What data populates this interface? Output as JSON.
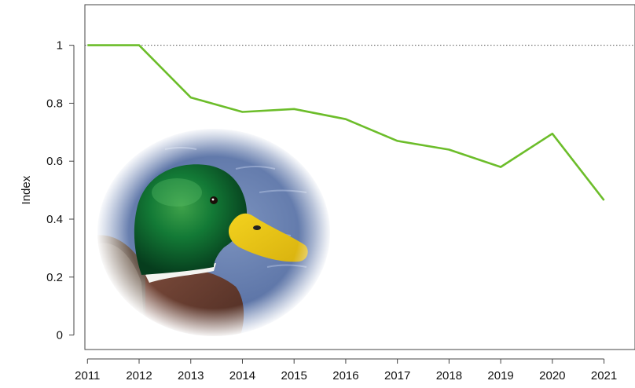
{
  "chart_data": {
    "type": "line",
    "title": "",
    "xlabel": "",
    "ylabel": "Index",
    "x": [
      2011,
      2012,
      2013,
      2014,
      2015,
      2016,
      2017,
      2018,
      2019,
      2020,
      2021
    ],
    "series": [
      {
        "values": [
          1.0,
          1.0,
          0.82,
          0.77,
          0.78,
          0.745,
          0.67,
          0.64,
          0.58,
          0.695,
          0.465
        ],
        "color": "#6cbd2a"
      }
    ],
    "ylim": [
      -0.05,
      1.14
    ],
    "xlim": [
      2010.95,
      2021.6
    ],
    "yticks": [
      0,
      0.2,
      0.4,
      0.6,
      0.8,
      1
    ],
    "ytick_labels": [
      "0",
      "0.2",
      "0.4",
      "0.6",
      "0.8",
      "1"
    ],
    "xtick_labels": [
      "2011",
      "2012",
      "2013",
      "2014",
      "2015",
      "2016",
      "2017",
      "2018",
      "2019",
      "2020",
      "2021"
    ],
    "reference_line": {
      "y": 1,
      "style": "dotted",
      "color": "#555555"
    },
    "grid": false,
    "legend": "none",
    "decoration": "mallard-duck-head-photo"
  }
}
